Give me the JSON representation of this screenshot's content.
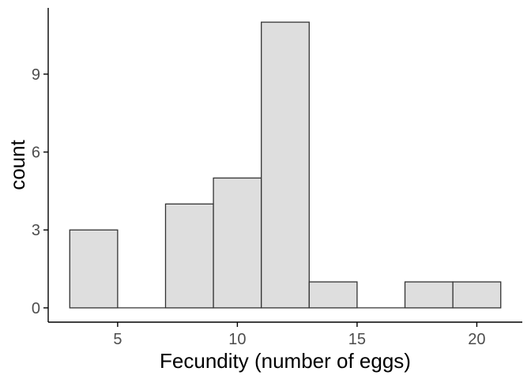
{
  "chart_data": {
    "type": "bar",
    "subtype": "histogram",
    "xlabel": "Fecundity (number of eggs)",
    "ylabel": "count",
    "xlim": [
      2.1,
      21.9
    ],
    "ylim": [
      -0.55,
      11.55
    ],
    "xticks": [
      5,
      10,
      15,
      20
    ],
    "yticks": [
      0,
      3,
      6,
      9
    ],
    "bins": [
      {
        "x0": 3,
        "x1": 5,
        "count": 3
      },
      {
        "x0": 5,
        "x1": 7,
        "count": 0
      },
      {
        "x0": 7,
        "x1": 9,
        "count": 4
      },
      {
        "x0": 9,
        "x1": 11,
        "count": 5
      },
      {
        "x0": 11,
        "x1": 13,
        "count": 11
      },
      {
        "x0": 13,
        "x1": 15,
        "count": 1
      },
      {
        "x0": 15,
        "x1": 17,
        "count": 0
      },
      {
        "x0": 17,
        "x1": 19,
        "count": 1
      },
      {
        "x0": 19,
        "x1": 21,
        "count": 1
      }
    ],
    "bar_fill": "#dedede",
    "bar_stroke": "#333333",
    "grid": false
  }
}
